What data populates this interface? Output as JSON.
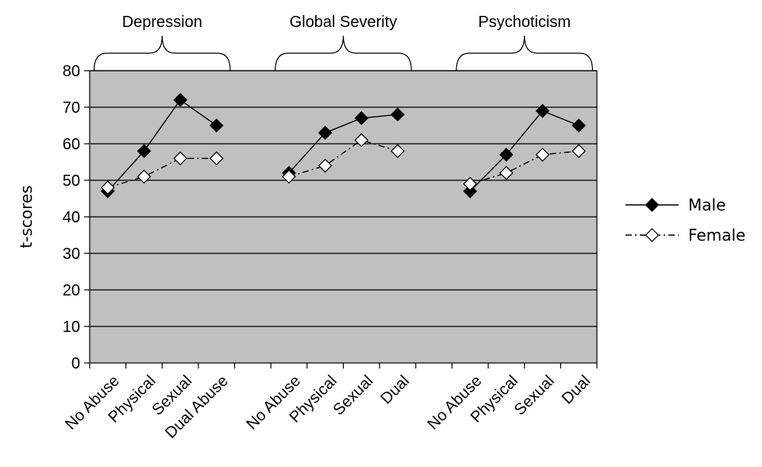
{
  "chart_data": {
    "type": "line",
    "ylabel": "t-scores",
    "ylim": [
      0,
      80
    ],
    "yticks": [
      0,
      10,
      20,
      30,
      40,
      50,
      60,
      70,
      80
    ],
    "grid": true,
    "plot_background": "#c0c0c0",
    "legend_position": "right",
    "groups": [
      {
        "label": "Depression",
        "categories": [
          "No Abuse",
          "Physical",
          "Sexual",
          "Dual Abuse"
        ]
      },
      {
        "label": "Global Severity",
        "categories": [
          "No Abuse",
          "Physical",
          "Sexual",
          "Dual"
        ]
      },
      {
        "label": "Psychoticism",
        "categories": [
          "No Abuse",
          "Physical",
          "Sexual",
          "Dual"
        ]
      }
    ],
    "series": [
      {
        "name": "Male",
        "marker": "filled-diamond",
        "line": "solid",
        "values": [
          [
            47,
            58,
            72,
            65
          ],
          [
            52,
            63,
            67,
            68
          ],
          [
            47,
            57,
            69,
            65
          ]
        ]
      },
      {
        "name": "Female",
        "marker": "open-diamond",
        "line": "dash-dot",
        "values": [
          [
            48,
            51,
            56,
            56
          ],
          [
            51,
            54,
            61,
            58
          ],
          [
            49,
            52,
            57,
            58
          ]
        ]
      }
    ]
  }
}
